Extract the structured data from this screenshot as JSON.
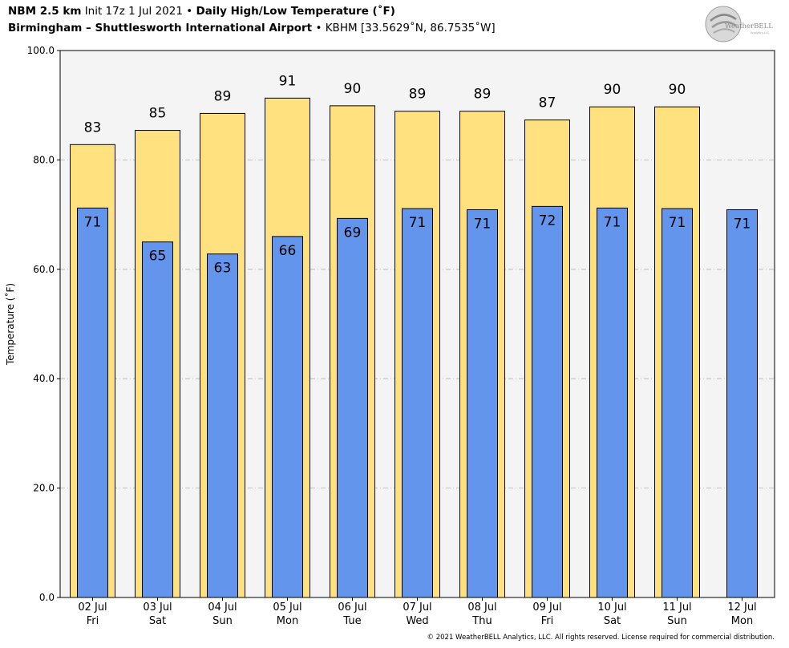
{
  "header": {
    "model": "NBM 2.5 km",
    "init": "Init 17z 1 Jul 2021",
    "bullet": "•",
    "product": "Daily High/Low Temperature (˚F)",
    "station": "Birmingham – Shuttlesworth International Airport",
    "station_info": "KBHM [33.5629˚N, 86.7535˚W]"
  },
  "logo": {
    "brand": "WeatherBELL",
    "sub": "Analytics LLC"
  },
  "copyright": "© 2021 WeatherBELL Analytics, LLC. All rights reserved. License required for commercial distribution.",
  "colors": {
    "high": "#ffe27f",
    "low": "#6495ed",
    "plot_bg": "#f4f4f4",
    "grid": "#b0b0b0"
  },
  "chart_data": {
    "type": "bar",
    "ylabel": "Temperature (˚F)",
    "ylim": [
      0,
      100
    ],
    "yticks": [
      "0.0",
      "20.0",
      "40.0",
      "60.0",
      "80.0",
      "100.0"
    ],
    "grid": true,
    "categories": [
      {
        "date": "02 Jul",
        "day": "Fri"
      },
      {
        "date": "03 Jul",
        "day": "Sat"
      },
      {
        "date": "04 Jul",
        "day": "Sun"
      },
      {
        "date": "05 Jul",
        "day": "Mon"
      },
      {
        "date": "06 Jul",
        "day": "Tue"
      },
      {
        "date": "07 Jul",
        "day": "Wed"
      },
      {
        "date": "08 Jul",
        "day": "Thu"
      },
      {
        "date": "09 Jul",
        "day": "Fri"
      },
      {
        "date": "10 Jul",
        "day": "Sat"
      },
      {
        "date": "11 Jul",
        "day": "Sun"
      },
      {
        "date": "12 Jul",
        "day": "Mon"
      }
    ],
    "series": [
      {
        "key": "high",
        "values": [
          82.8,
          85.4,
          88.5,
          91.3,
          89.9,
          88.9,
          88.9,
          87.3,
          89.7,
          89.7,
          null
        ],
        "labels": [
          "83",
          "85",
          "89",
          "91",
          "90",
          "89",
          "89",
          "87",
          "90",
          "90",
          ""
        ]
      },
      {
        "key": "low",
        "values": [
          71.2,
          65.0,
          62.8,
          66.0,
          69.3,
          71.1,
          70.9,
          71.5,
          71.2,
          71.1,
          70.9
        ],
        "labels": [
          "71",
          "65",
          "63",
          "66",
          "69",
          "71",
          "71",
          "72",
          "71",
          "71",
          "71"
        ]
      }
    ]
  }
}
